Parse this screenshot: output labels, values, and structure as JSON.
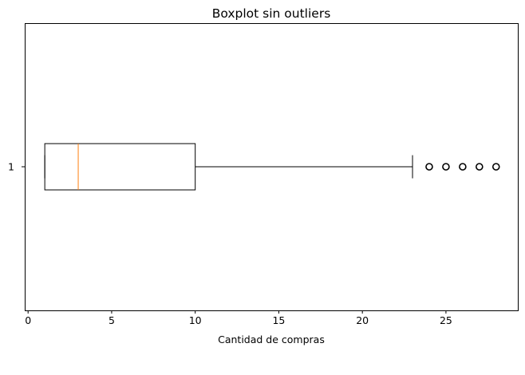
{
  "chart_data": {
    "type": "boxplot",
    "orientation": "horizontal",
    "title": "Boxplot sin outliers",
    "xlabel": "Cantidad de compras",
    "ylabel": "",
    "xlim": [
      -0.2,
      29.3
    ],
    "x_ticks": [
      0,
      5,
      10,
      15,
      20,
      25
    ],
    "x_tick_labels": [
      "0",
      "5",
      "10",
      "15",
      "20",
      "25"
    ],
    "y_tick_labels": [
      "1"
    ],
    "grid": false,
    "boxes": [
      {
        "position": "1",
        "whisker_low": 1,
        "q1": 1,
        "median": 3,
        "q3": 10,
        "whisker_high": 23,
        "fliers": [
          24,
          25,
          26,
          27,
          28
        ]
      }
    ],
    "colors": {
      "box": "#000000",
      "median": "#ff7f0e",
      "flier_edge": "#000000"
    }
  }
}
